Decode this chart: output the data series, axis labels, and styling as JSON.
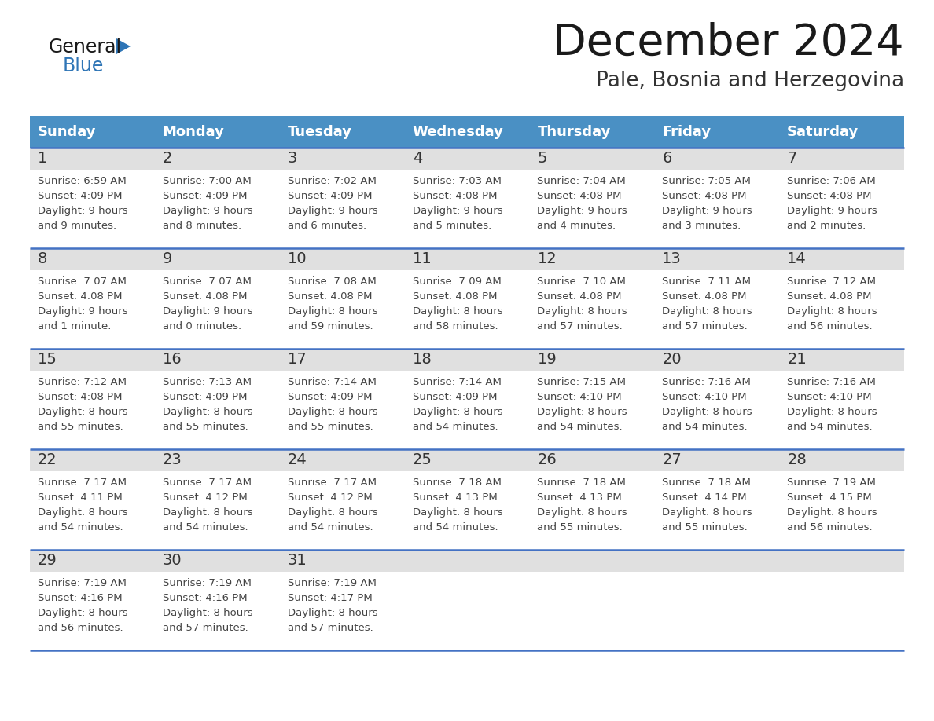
{
  "title": "December 2024",
  "subtitle": "Pale, Bosnia and Herzegovina",
  "header_color": "#4A90C4",
  "header_text_color": "#FFFFFF",
  "cell_day_bg": "#E8E8E8",
  "cell_info_bg": "#FFFFFF",
  "border_color": "#4472C4",
  "text_color": "#333333",
  "days_of_week": [
    "Sunday",
    "Monday",
    "Tuesday",
    "Wednesday",
    "Thursday",
    "Friday",
    "Saturday"
  ],
  "calendar_data": [
    [
      {
        "day": 1,
        "sunrise": "6:59 AM",
        "sunset": "4:09 PM",
        "daylight_h": "9 hours",
        "daylight_m": "and 9 minutes."
      },
      {
        "day": 2,
        "sunrise": "7:00 AM",
        "sunset": "4:09 PM",
        "daylight_h": "9 hours",
        "daylight_m": "and 8 minutes."
      },
      {
        "day": 3,
        "sunrise": "7:02 AM",
        "sunset": "4:09 PM",
        "daylight_h": "9 hours",
        "daylight_m": "and 6 minutes."
      },
      {
        "day": 4,
        "sunrise": "7:03 AM",
        "sunset": "4:08 PM",
        "daylight_h": "9 hours",
        "daylight_m": "and 5 minutes."
      },
      {
        "day": 5,
        "sunrise": "7:04 AM",
        "sunset": "4:08 PM",
        "daylight_h": "9 hours",
        "daylight_m": "and 4 minutes."
      },
      {
        "day": 6,
        "sunrise": "7:05 AM",
        "sunset": "4:08 PM",
        "daylight_h": "9 hours",
        "daylight_m": "and 3 minutes."
      },
      {
        "day": 7,
        "sunrise": "7:06 AM",
        "sunset": "4:08 PM",
        "daylight_h": "9 hours",
        "daylight_m": "and 2 minutes."
      }
    ],
    [
      {
        "day": 8,
        "sunrise": "7:07 AM",
        "sunset": "4:08 PM",
        "daylight_h": "9 hours",
        "daylight_m": "and 1 minute."
      },
      {
        "day": 9,
        "sunrise": "7:07 AM",
        "sunset": "4:08 PM",
        "daylight_h": "9 hours",
        "daylight_m": "and 0 minutes."
      },
      {
        "day": 10,
        "sunrise": "7:08 AM",
        "sunset": "4:08 PM",
        "daylight_h": "8 hours",
        "daylight_m": "and 59 minutes."
      },
      {
        "day": 11,
        "sunrise": "7:09 AM",
        "sunset": "4:08 PM",
        "daylight_h": "8 hours",
        "daylight_m": "and 58 minutes."
      },
      {
        "day": 12,
        "sunrise": "7:10 AM",
        "sunset": "4:08 PM",
        "daylight_h": "8 hours",
        "daylight_m": "and 57 minutes."
      },
      {
        "day": 13,
        "sunrise": "7:11 AM",
        "sunset": "4:08 PM",
        "daylight_h": "8 hours",
        "daylight_m": "and 57 minutes."
      },
      {
        "day": 14,
        "sunrise": "7:12 AM",
        "sunset": "4:08 PM",
        "daylight_h": "8 hours",
        "daylight_m": "and 56 minutes."
      }
    ],
    [
      {
        "day": 15,
        "sunrise": "7:12 AM",
        "sunset": "4:08 PM",
        "daylight_h": "8 hours",
        "daylight_m": "and 55 minutes."
      },
      {
        "day": 16,
        "sunrise": "7:13 AM",
        "sunset": "4:09 PM",
        "daylight_h": "8 hours",
        "daylight_m": "and 55 minutes."
      },
      {
        "day": 17,
        "sunrise": "7:14 AM",
        "sunset": "4:09 PM",
        "daylight_h": "8 hours",
        "daylight_m": "and 55 minutes."
      },
      {
        "day": 18,
        "sunrise": "7:14 AM",
        "sunset": "4:09 PM",
        "daylight_h": "8 hours",
        "daylight_m": "and 54 minutes."
      },
      {
        "day": 19,
        "sunrise": "7:15 AM",
        "sunset": "4:10 PM",
        "daylight_h": "8 hours",
        "daylight_m": "and 54 minutes."
      },
      {
        "day": 20,
        "sunrise": "7:16 AM",
        "sunset": "4:10 PM",
        "daylight_h": "8 hours",
        "daylight_m": "and 54 minutes."
      },
      {
        "day": 21,
        "sunrise": "7:16 AM",
        "sunset": "4:10 PM",
        "daylight_h": "8 hours",
        "daylight_m": "and 54 minutes."
      }
    ],
    [
      {
        "day": 22,
        "sunrise": "7:17 AM",
        "sunset": "4:11 PM",
        "daylight_h": "8 hours",
        "daylight_m": "and 54 minutes."
      },
      {
        "day": 23,
        "sunrise": "7:17 AM",
        "sunset": "4:12 PM",
        "daylight_h": "8 hours",
        "daylight_m": "and 54 minutes."
      },
      {
        "day": 24,
        "sunrise": "7:17 AM",
        "sunset": "4:12 PM",
        "daylight_h": "8 hours",
        "daylight_m": "and 54 minutes."
      },
      {
        "day": 25,
        "sunrise": "7:18 AM",
        "sunset": "4:13 PM",
        "daylight_h": "8 hours",
        "daylight_m": "and 54 minutes."
      },
      {
        "day": 26,
        "sunrise": "7:18 AM",
        "sunset": "4:13 PM",
        "daylight_h": "8 hours",
        "daylight_m": "and 55 minutes."
      },
      {
        "day": 27,
        "sunrise": "7:18 AM",
        "sunset": "4:14 PM",
        "daylight_h": "8 hours",
        "daylight_m": "and 55 minutes."
      },
      {
        "day": 28,
        "sunrise": "7:19 AM",
        "sunset": "4:15 PM",
        "daylight_h": "8 hours",
        "daylight_m": "and 56 minutes."
      }
    ],
    [
      {
        "day": 29,
        "sunrise": "7:19 AM",
        "sunset": "4:16 PM",
        "daylight_h": "8 hours",
        "daylight_m": "and 56 minutes."
      },
      {
        "day": 30,
        "sunrise": "7:19 AM",
        "sunset": "4:16 PM",
        "daylight_h": "8 hours",
        "daylight_m": "and 57 minutes."
      },
      {
        "day": 31,
        "sunrise": "7:19 AM",
        "sunset": "4:17 PM",
        "daylight_h": "8 hours",
        "daylight_m": "and 57 minutes."
      },
      null,
      null,
      null,
      null
    ]
  ]
}
